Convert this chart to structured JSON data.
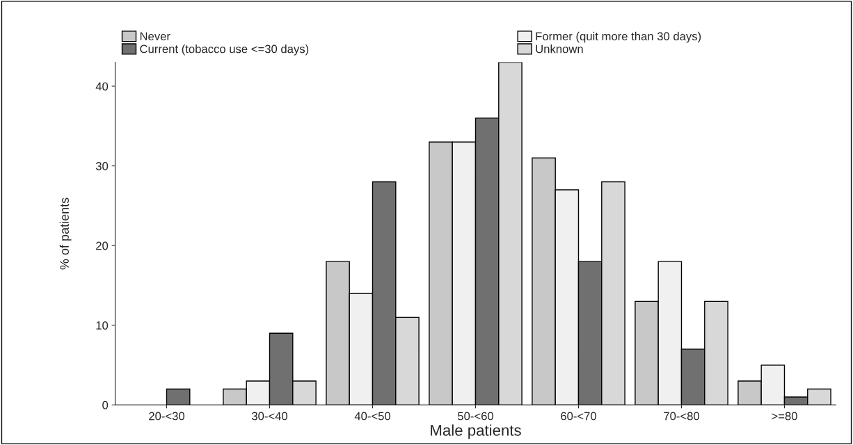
{
  "chart_data": {
    "type": "bar",
    "xlabel": "Male patients",
    "ylabel": "% of patients",
    "categories": [
      "20-<30",
      "30-<40",
      "40-<50",
      "50-<60",
      "60-<70",
      "70-<80",
      ">=80"
    ],
    "series": [
      {
        "name": "Never",
        "color": "#c8c8c8",
        "values": [
          null,
          2,
          18,
          33,
          31,
          13,
          3
        ]
      },
      {
        "name": "Former (quit more than 30 days)",
        "color": "#f0f0f0",
        "values": [
          null,
          3,
          14,
          33,
          27,
          18,
          5
        ]
      },
      {
        "name": "Current (tobacco use <=30 days)",
        "color": "#707070",
        "values": [
          2,
          9,
          28,
          36,
          18,
          7,
          1
        ]
      },
      {
        "name": "Unknown",
        "color": "#d8d8d8",
        "values": [
          null,
          3,
          11,
          43,
          28,
          13,
          2
        ]
      }
    ],
    "ylim": [
      0,
      43
    ],
    "yticks": [
      0,
      10,
      20,
      30,
      40
    ],
    "grid": false,
    "legend": "top"
  }
}
